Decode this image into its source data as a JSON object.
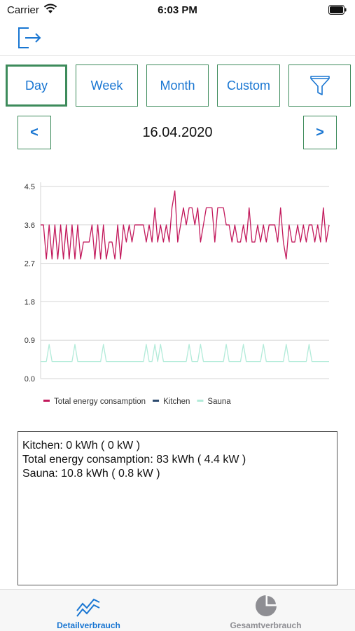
{
  "status": {
    "carrier": "Carrier",
    "time": "6:03 PM"
  },
  "nav": {
    "logout_icon": "logout-icon"
  },
  "period_buttons": [
    {
      "label": "Day",
      "active": true
    },
    {
      "label": "Week",
      "active": false
    },
    {
      "label": "Month",
      "active": false
    },
    {
      "label": "Custom",
      "active": false
    }
  ],
  "filter_icon": "filter-icon",
  "date_nav": {
    "prev": "<",
    "next": ">",
    "date": "16.04.2020"
  },
  "colors": {
    "accent": "#1976d2",
    "border": "#3d8b5b",
    "total": "#c2185b",
    "kitchen": "#2c4a6e",
    "sauna": "#b2ebd9"
  },
  "chart_data": {
    "type": "line",
    "ylim": [
      0,
      4.5
    ],
    "yticks": [
      "0.0",
      "0.9",
      "1.8",
      "2.7",
      "3.6",
      "4.5"
    ],
    "grid": true,
    "legend_position": "bottom-left",
    "series": [
      {
        "name": "Total energy consamption",
        "color": "#c2185b",
        "values": [
          3.6,
          3.6,
          2.8,
          3.6,
          2.8,
          3.6,
          2.8,
          3.6,
          2.8,
          3.6,
          2.8,
          3.6,
          2.8,
          3.6,
          2.8,
          3.2,
          3.2,
          3.2,
          3.6,
          2.8,
          3.6,
          2.8,
          3.6,
          2.8,
          3.2,
          3.2,
          2.8,
          3.6,
          2.8,
          3.6,
          3.2,
          3.6,
          3.2,
          3.6,
          3.6,
          3.6,
          3.6,
          3.2,
          3.6,
          3.2,
          4.0,
          3.2,
          3.6,
          3.2,
          3.6,
          3.2,
          4.0,
          4.4,
          3.2,
          3.6,
          4.0,
          3.6,
          4.0,
          4.0,
          3.6,
          4.0,
          3.2,
          3.6,
          4.0,
          4.0,
          4.0,
          3.2,
          4.0,
          4.0,
          4.0,
          3.6,
          3.6,
          3.2,
          3.6,
          3.2,
          3.2,
          3.6,
          3.2,
          4.0,
          3.2,
          3.2,
          3.6,
          3.2,
          3.6,
          3.2,
          3.6,
          3.6,
          3.6,
          3.2,
          4.0,
          3.2,
          2.8,
          3.6,
          3.2,
          3.2,
          3.6,
          3.2,
          3.6,
          3.2,
          3.6,
          3.6,
          3.2,
          3.6,
          3.2,
          4.0,
          3.2,
          3.6
        ]
      },
      {
        "name": "Kitchen",
        "color": "#2c4a6e",
        "values": [
          0,
          0,
          0,
          0,
          0,
          0,
          0,
          0,
          0,
          0,
          0,
          0,
          0,
          0,
          0,
          0,
          0,
          0,
          0,
          0,
          0,
          0,
          0,
          0,
          0,
          0,
          0,
          0,
          0,
          0,
          0,
          0,
          0,
          0,
          0,
          0,
          0,
          0,
          0,
          0,
          0,
          0,
          0,
          0,
          0,
          0,
          0,
          0,
          0,
          0,
          0,
          0,
          0,
          0,
          0,
          0,
          0,
          0,
          0,
          0,
          0,
          0,
          0,
          0,
          0,
          0,
          0,
          0,
          0,
          0,
          0,
          0,
          0,
          0,
          0,
          0,
          0,
          0,
          0,
          0,
          0,
          0,
          0,
          0,
          0,
          0,
          0,
          0,
          0,
          0,
          0,
          0,
          0,
          0,
          0,
          0,
          0,
          0,
          0,
          0,
          0,
          0
        ]
      },
      {
        "name": "Sauna",
        "color": "#b2ebd9",
        "values": [
          0.4,
          0.4,
          0.4,
          0.8,
          0.4,
          0.4,
          0.4,
          0.4,
          0.4,
          0.4,
          0.4,
          0.4,
          0.8,
          0.4,
          0.4,
          0.4,
          0.4,
          0.4,
          0.4,
          0.4,
          0.4,
          0.4,
          0.8,
          0.4,
          0.4,
          0.4,
          0.4,
          0.4,
          0.4,
          0.4,
          0.4,
          0.4,
          0.4,
          0.4,
          0.4,
          0.4,
          0.4,
          0.8,
          0.4,
          0.4,
          0.8,
          0.4,
          0.8,
          0.4,
          0.4,
          0.4,
          0.4,
          0.4,
          0.4,
          0.4,
          0.4,
          0.4,
          0.8,
          0.4,
          0.4,
          0.4,
          0.8,
          0.4,
          0.4,
          0.4,
          0.4,
          0.4,
          0.4,
          0.4,
          0.4,
          0.8,
          0.4,
          0.4,
          0.4,
          0.4,
          0.4,
          0.8,
          0.4,
          0.4,
          0.4,
          0.4,
          0.4,
          0.4,
          0.8,
          0.4,
          0.4,
          0.4,
          0.4,
          0.4,
          0.4,
          0.4,
          0.8,
          0.4,
          0.4,
          0.4,
          0.4,
          0.4,
          0.4,
          0.4,
          0.8,
          0.4,
          0.4,
          0.4,
          0.4,
          0.4,
          0.4,
          0.4
        ]
      }
    ]
  },
  "info_lines": [
    "Kitchen: 0 kWh ( 0 kW )",
    "Total energy consamption: 83 kWh ( 4.4 kW )",
    "Sauna: 10.8 kWh ( 0.8 kW )"
  ],
  "tabs": [
    {
      "label": "Detailverbrauch",
      "icon": "line-chart-icon",
      "active": true
    },
    {
      "label": "Gesamtverbrauch",
      "icon": "pie-chart-icon",
      "active": false
    }
  ]
}
